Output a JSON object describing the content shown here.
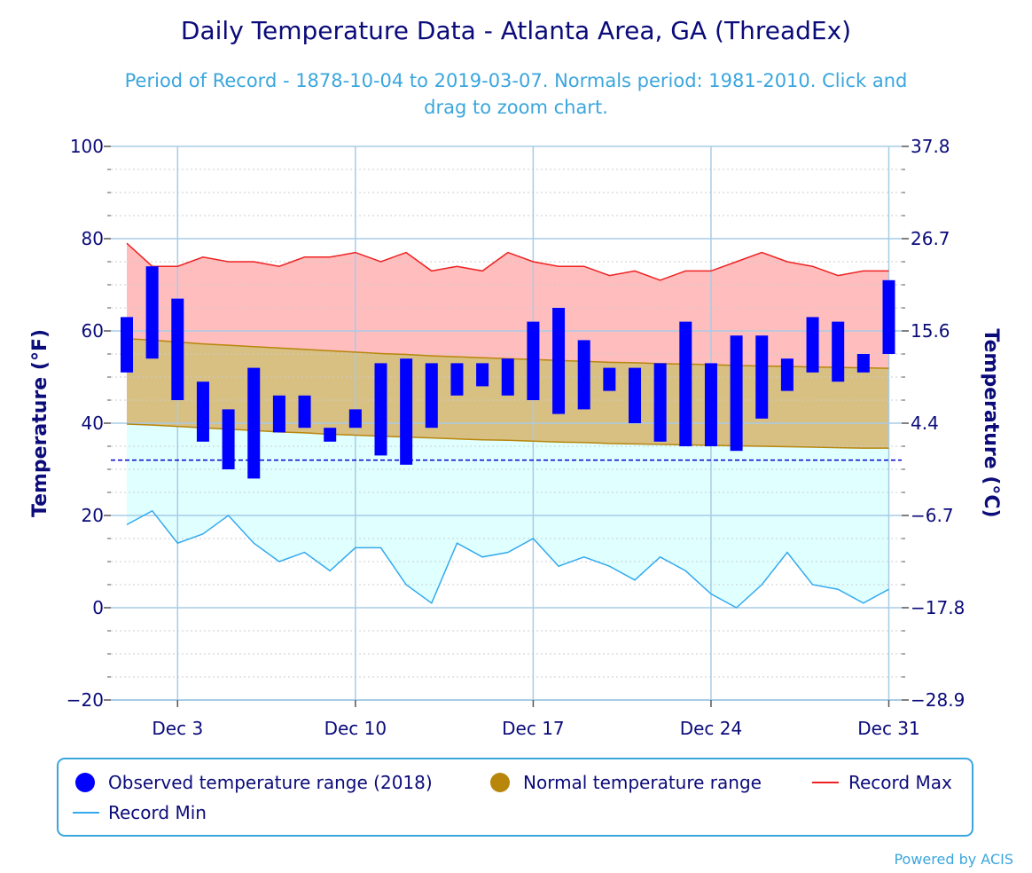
{
  "colors": {
    "title": "#0b0b7a",
    "subtitle": "#3aa6dd",
    "observed": "#0000ff",
    "normal_fill": "#d8bf82",
    "normal_line": "#b8860b",
    "record_max_fill": "#ffbdbd",
    "record_max_line": "#ee2222",
    "record_min_fill": "#e0ffff",
    "record_min_line": "#33aaee",
    "freezing_line": "#0000cc",
    "grid": "#a8cce6",
    "axis_text": "#0b0b7a",
    "legend_border": "#3aa6dd"
  },
  "chart_data": {
    "type": "bar",
    "title": "Daily Temperature Data - Atlanta Area, GA (ThreadEx)",
    "subtitle": "Period of Record - 1878-10-04 to 2019-03-07. Normals period: 1981-2010. Click and drag to zoom chart.",
    "credit": "Powered by ACIS",
    "ylabel_left": "Temperature (°F)",
    "ylabel_right": "Temperature (°C)",
    "ylim": [
      -20,
      100
    ],
    "yticks_f": [
      "100",
      "80",
      "60",
      "40",
      "20",
      "0",
      "−20"
    ],
    "yticks_c": [
      "37.8",
      "26.7",
      "15.6",
      "4.4",
      "−6.7",
      "−17.8",
      "−28.9"
    ],
    "xtick_labels": [
      "Dec 3",
      "Dec 10",
      "Dec 17",
      "Dec 24",
      "Dec 31"
    ],
    "freezing_line": 32,
    "days": [
      1,
      2,
      3,
      4,
      5,
      6,
      7,
      8,
      9,
      10,
      11,
      12,
      13,
      14,
      15,
      16,
      17,
      18,
      19,
      20,
      21,
      22,
      23,
      24,
      25,
      26,
      27,
      28,
      29,
      30,
      31
    ],
    "observed_low": [
      51,
      54,
      45,
      36,
      30,
      28,
      38,
      39,
      36,
      39,
      33,
      31,
      39,
      46,
      48,
      46,
      45,
      42,
      43,
      47,
      40,
      36,
      35,
      35,
      34,
      41,
      47,
      51,
      49,
      51,
      55
    ],
    "observed_high": [
      63,
      74,
      67,
      49,
      43,
      52,
      46,
      46,
      39,
      43,
      53,
      54,
      53,
      53,
      53,
      54,
      62,
      65,
      58,
      52,
      52,
      53,
      62,
      53,
      59,
      59,
      54,
      63,
      62,
      55,
      71
    ],
    "normal_high": [
      58.3,
      58.0,
      57.6,
      57.2,
      56.9,
      56.6,
      56.3,
      56.0,
      55.7,
      55.4,
      55.1,
      54.9,
      54.6,
      54.4,
      54.2,
      54.0,
      53.8,
      53.6,
      53.4,
      53.2,
      53.1,
      52.9,
      52.8,
      52.7,
      52.5,
      52.4,
      52.3,
      52.2,
      52.1,
      52.0,
      51.9
    ],
    "normal_low": [
      39.8,
      39.6,
      39.3,
      39.0,
      38.7,
      38.4,
      38.1,
      37.9,
      37.6,
      37.4,
      37.2,
      37.0,
      36.8,
      36.6,
      36.4,
      36.3,
      36.1,
      35.9,
      35.8,
      35.6,
      35.5,
      35.4,
      35.3,
      35.2,
      35.1,
      35.0,
      34.9,
      34.8,
      34.7,
      34.6,
      34.6
    ],
    "record_max": [
      79,
      74,
      74,
      76,
      75,
      75,
      74,
      76,
      76,
      77,
      75,
      77,
      73,
      74,
      73,
      77,
      75,
      74,
      74,
      72,
      73,
      71,
      73,
      73,
      75,
      77,
      75,
      74,
      72,
      73,
      73
    ],
    "record_min": [
      18,
      21,
      14,
      16,
      20,
      14,
      10,
      12,
      8,
      13,
      13,
      5,
      1,
      14,
      11,
      12,
      15,
      9,
      11,
      9,
      6,
      11,
      8,
      3,
      0,
      5,
      12,
      5,
      4,
      1,
      4
    ],
    "legend": [
      {
        "label": "Observed temperature range (2018)",
        "symbol": "circle",
        "color": "#0000ff"
      },
      {
        "label": "Normal temperature range",
        "symbol": "circle",
        "color": "#b8860b"
      },
      {
        "label": "Record Max",
        "symbol": "line",
        "color": "#ee2222"
      },
      {
        "label": "Record Min",
        "symbol": "line",
        "color": "#33aaee"
      }
    ]
  }
}
